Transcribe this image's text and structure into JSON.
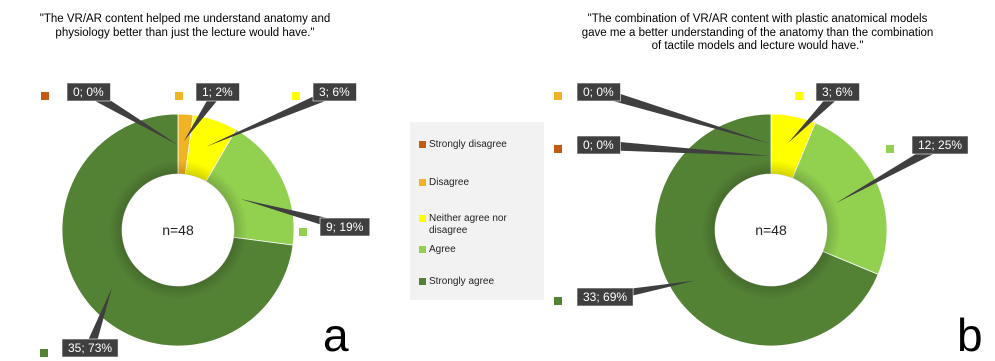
{
  "colors": {
    "strongly_disagree": "#c55a11",
    "disagree": "#f0b323",
    "neither": "#ffff00",
    "agree": "#92d050",
    "strongly_agree": "#548235",
    "label_bg": "#3f3f3f",
    "label_text": "#ffffff"
  },
  "legend": {
    "items": [
      {
        "label": "Strongly disagree",
        "color": "#c55a11"
      },
      {
        "label": "Disagree",
        "color": "#f0b323"
      },
      {
        "label": "Neither agree nor disagree",
        "color": "#ffff00"
      },
      {
        "label": "Agree",
        "color": "#92d050"
      },
      {
        "label": "Strongly agree",
        "color": "#548235"
      }
    ]
  },
  "panels": {
    "a": "a",
    "b": "b"
  },
  "chart_data": [
    {
      "type": "donut",
      "title_lines": [
        "\"The VR/AR content helped me understand anatomy and",
        "physiology better than just the lecture would have.\""
      ],
      "center_label": "n=48",
      "categories": [
        "Strongly disagree",
        "Disagree",
        "Neither agree nor disagree",
        "Agree",
        "Strongly agree"
      ],
      "values": [
        0,
        1,
        3,
        9,
        35
      ],
      "labels": [
        "0; 0%",
        "1; 2%",
        "3; 6%",
        "9; 19%",
        "35; 73%"
      ]
    },
    {
      "type": "donut",
      "title_lines": [
        "\"The combination of VR/AR content with plastic anatomical models",
        "gave me a better understanding of the anatomy than the combination",
        "of tactile models and lecture would have.\""
      ],
      "center_label": "n=48",
      "categories": [
        "Strongly disagree",
        "Disagree",
        "Neither agree nor disagree",
        "Agree",
        "Strongly agree"
      ],
      "values": [
        0,
        0,
        3,
        12,
        33
      ],
      "labels": [
        "0; 0%",
        "0; 0%",
        "3; 6%",
        "12; 25%",
        "33; 69%"
      ]
    }
  ]
}
